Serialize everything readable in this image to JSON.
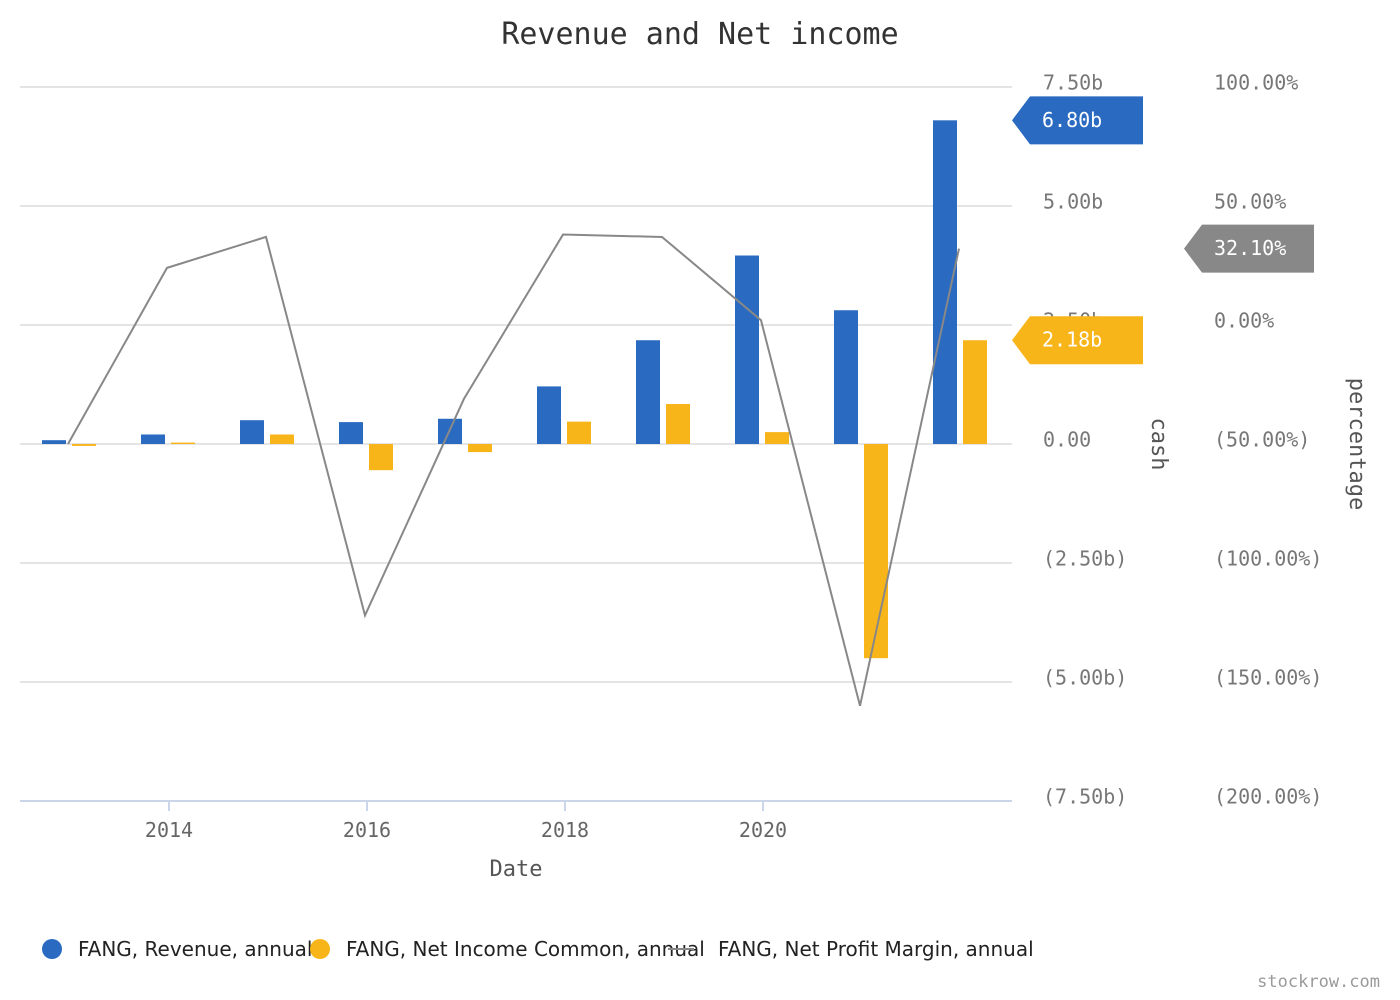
{
  "chart_data": {
    "type": "bar",
    "title": "Revenue and Net income",
    "xlabel": "Date",
    "ylabel_left": "cash",
    "ylabel_right": "percentage",
    "x": [
      2013,
      2014,
      2015,
      2016,
      2017,
      2018,
      2019,
      2020,
      2021,
      2022
    ],
    "x_ticks": [
      {
        "value": 2014,
        "label": "2014"
      },
      {
        "value": 2016,
        "label": "2016"
      },
      {
        "value": 2018,
        "label": "2018"
      },
      {
        "value": 2020,
        "label": "2020"
      }
    ],
    "cash_axis": {
      "ylim": [
        -7.5,
        7.5
      ],
      "unit": "b",
      "ticks": [
        {
          "value": 7.5,
          "label": "7.50b"
        },
        {
          "value": 5.0,
          "label": "5.00b"
        },
        {
          "value": 2.5,
          "label": "2.50b"
        },
        {
          "value": 0,
          "label": "0.00"
        },
        {
          "value": -2.5,
          "label": "(2.50b)"
        },
        {
          "value": -5.0,
          "label": "(5.00b)"
        },
        {
          "value": -7.5,
          "label": "(7.50b)"
        }
      ]
    },
    "percentage_axis": {
      "ylim": [
        -200,
        100
      ],
      "ticks": [
        {
          "value": 100,
          "label": "100.00%"
        },
        {
          "value": 50,
          "label": "50.00%"
        },
        {
          "value": 0,
          "label": "0.00%"
        },
        {
          "value": -50,
          "label": "(50.00%)"
        },
        {
          "value": -100,
          "label": "(100.00%)"
        },
        {
          "value": -150,
          "label": "(150.00%)"
        },
        {
          "value": -200,
          "label": "(200.00%)"
        }
      ]
    },
    "series": [
      {
        "name": "FANG, Revenue, annual",
        "kind": "bar",
        "axis": "cash",
        "color": "#2a6ac0",
        "values": [
          0.08,
          0.2,
          0.5,
          0.46,
          0.53,
          1.21,
          2.18,
          3.96,
          2.81,
          6.8
        ]
      },
      {
        "name": "FANG, Net Income Common, annual",
        "kind": "bar",
        "axis": "cash",
        "color": "#f8b519",
        "values": [
          -0.04,
          0.03,
          0.2,
          -0.55,
          -0.17,
          0.47,
          0.84,
          0.25,
          -4.5,
          2.18
        ]
      },
      {
        "name": "FANG, Net Profit Margin, annual",
        "kind": "line",
        "axis": "percentage",
        "color": "#888888",
        "values": [
          -50.0,
          24.0,
          37.0,
          -122.0,
          -31.0,
          38.0,
          37.0,
          2.0,
          -160.0,
          32.1
        ]
      }
    ],
    "badges": [
      {
        "series": 0,
        "label": "6.80b",
        "color": "#2a6ac0",
        "axis": "cash",
        "value": 6.8
      },
      {
        "series": 1,
        "label": "2.18b",
        "color": "#f8b519",
        "axis": "cash",
        "value": 2.18
      },
      {
        "series": 2,
        "label": "32.10%",
        "color": "#888888",
        "axis": "percentage",
        "value": 32.1
      }
    ],
    "grid": true,
    "legend_position": "bottom-left"
  },
  "watermark": "stockrow.com"
}
